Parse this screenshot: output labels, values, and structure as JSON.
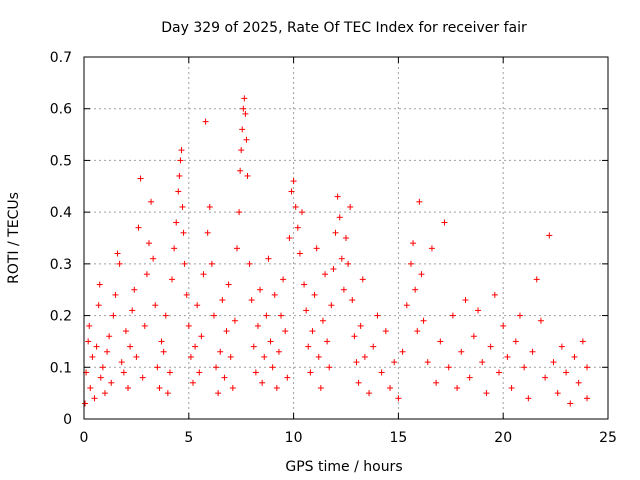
{
  "chart_data": {
    "type": "scatter",
    "title": "Day 329 of 2025, Rate Of TEC Index for receiver fair",
    "xlabel": "GPS time / hours",
    "ylabel": "ROTI / TECUs",
    "xlim": [
      0,
      25
    ],
    "ylim": [
      0,
      0.7
    ],
    "xticks": [
      "0",
      "5",
      "10",
      "15",
      "20",
      "25"
    ],
    "yticks": [
      "0",
      "0.1",
      "0.2",
      "0.3",
      "0.4",
      "0.5",
      "0.6",
      "0.7"
    ],
    "grid": true,
    "legend": "none",
    "marker": "+",
    "marker_color": "#ff0000",
    "series": [
      {
        "points": [
          [
            0.05,
            0.03
          ],
          [
            0.1,
            0.09
          ],
          [
            0.2,
            0.15
          ],
          [
            0.25,
            0.18
          ],
          [
            0.3,
            0.06
          ],
          [
            0.4,
            0.12
          ],
          [
            0.5,
            0.04
          ],
          [
            0.6,
            0.14
          ],
          [
            0.7,
            0.22
          ],
          [
            0.75,
            0.26
          ],
          [
            0.8,
            0.08
          ],
          [
            0.9,
            0.1
          ],
          [
            1.0,
            0.05
          ],
          [
            1.1,
            0.13
          ],
          [
            1.2,
            0.16
          ],
          [
            1.3,
            0.07
          ],
          [
            1.4,
            0.2
          ],
          [
            1.5,
            0.24
          ],
          [
            1.6,
            0.32
          ],
          [
            1.7,
            0.3
          ],
          [
            1.8,
            0.11
          ],
          [
            1.9,
            0.09
          ],
          [
            2.0,
            0.17
          ],
          [
            2.1,
            0.06
          ],
          [
            2.2,
            0.14
          ],
          [
            2.3,
            0.21
          ],
          [
            2.4,
            0.25
          ],
          [
            2.5,
            0.12
          ],
          [
            2.6,
            0.37
          ],
          [
            2.7,
            0.465
          ],
          [
            2.8,
            0.08
          ],
          [
            2.9,
            0.18
          ],
          [
            3.0,
            0.28
          ],
          [
            3.1,
            0.34
          ],
          [
            3.2,
            0.42
          ],
          [
            3.3,
            0.31
          ],
          [
            3.4,
            0.22
          ],
          [
            3.5,
            0.1
          ],
          [
            3.6,
            0.06
          ],
          [
            3.7,
            0.15
          ],
          [
            3.8,
            0.13
          ],
          [
            3.9,
            0.2
          ],
          [
            4.0,
            0.05
          ],
          [
            4.1,
            0.09
          ],
          [
            4.2,
            0.27
          ],
          [
            4.3,
            0.33
          ],
          [
            4.4,
            0.38
          ],
          [
            4.5,
            0.44
          ],
          [
            4.55,
            0.47
          ],
          [
            4.6,
            0.5
          ],
          [
            4.65,
            0.52
          ],
          [
            4.7,
            0.41
          ],
          [
            4.75,
            0.36
          ],
          [
            4.8,
            0.3
          ],
          [
            4.9,
            0.24
          ],
          [
            5.0,
            0.18
          ],
          [
            5.1,
            0.12
          ],
          [
            5.2,
            0.07
          ],
          [
            5.3,
            0.14
          ],
          [
            5.4,
            0.22
          ],
          [
            5.5,
            0.09
          ],
          [
            5.6,
            0.16
          ],
          [
            5.7,
            0.28
          ],
          [
            5.8,
            0.575
          ],
          [
            5.9,
            0.36
          ],
          [
            6.0,
            0.41
          ],
          [
            6.1,
            0.3
          ],
          [
            6.2,
            0.2
          ],
          [
            6.3,
            0.1
          ],
          [
            6.4,
            0.05
          ],
          [
            6.5,
            0.13
          ],
          [
            6.6,
            0.23
          ],
          [
            6.7,
            0.08
          ],
          [
            6.8,
            0.17
          ],
          [
            6.9,
            0.26
          ],
          [
            7.0,
            0.12
          ],
          [
            7.1,
            0.06
          ],
          [
            7.2,
            0.19
          ],
          [
            7.3,
            0.33
          ],
          [
            7.4,
            0.4
          ],
          [
            7.45,
            0.48
          ],
          [
            7.5,
            0.52
          ],
          [
            7.55,
            0.56
          ],
          [
            7.6,
            0.6
          ],
          [
            7.65,
            0.62
          ],
          [
            7.7,
            0.59
          ],
          [
            7.75,
            0.54
          ],
          [
            7.8,
            0.47
          ],
          [
            7.9,
            0.3
          ],
          [
            8.0,
            0.23
          ],
          [
            8.1,
            0.14
          ],
          [
            8.2,
            0.09
          ],
          [
            8.3,
            0.18
          ],
          [
            8.4,
            0.25
          ],
          [
            8.5,
            0.07
          ],
          [
            8.6,
            0.12
          ],
          [
            8.7,
            0.2
          ],
          [
            8.8,
            0.31
          ],
          [
            8.9,
            0.15
          ],
          [
            9.0,
            0.1
          ],
          [
            9.1,
            0.24
          ],
          [
            9.2,
            0.06
          ],
          [
            9.3,
            0.13
          ],
          [
            9.4,
            0.2
          ],
          [
            9.5,
            0.27
          ],
          [
            9.6,
            0.17
          ],
          [
            9.7,
            0.08
          ],
          [
            9.8,
            0.35
          ],
          [
            9.9,
            0.44
          ],
          [
            10.0,
            0.46
          ],
          [
            10.1,
            0.41
          ],
          [
            10.2,
            0.37
          ],
          [
            10.3,
            0.32
          ],
          [
            10.4,
            0.4
          ],
          [
            10.5,
            0.26
          ],
          [
            10.6,
            0.21
          ],
          [
            10.7,
            0.14
          ],
          [
            10.8,
            0.09
          ],
          [
            10.9,
            0.17
          ],
          [
            11.0,
            0.24
          ],
          [
            11.1,
            0.33
          ],
          [
            11.2,
            0.12
          ],
          [
            11.3,
            0.06
          ],
          [
            11.4,
            0.19
          ],
          [
            11.5,
            0.28
          ],
          [
            11.6,
            0.15
          ],
          [
            11.7,
            0.1
          ],
          [
            11.8,
            0.22
          ],
          [
            11.9,
            0.29
          ],
          [
            12.0,
            0.36
          ],
          [
            12.1,
            0.43
          ],
          [
            12.2,
            0.39
          ],
          [
            12.3,
            0.31
          ],
          [
            12.4,
            0.25
          ],
          [
            12.5,
            0.35
          ],
          [
            12.6,
            0.3
          ],
          [
            12.7,
            0.41
          ],
          [
            12.8,
            0.23
          ],
          [
            12.9,
            0.16
          ],
          [
            13.0,
            0.11
          ],
          [
            13.1,
            0.07
          ],
          [
            13.2,
            0.18
          ],
          [
            13.3,
            0.27
          ],
          [
            13.4,
            0.12
          ],
          [
            13.6,
            0.05
          ],
          [
            13.8,
            0.14
          ],
          [
            14.0,
            0.2
          ],
          [
            14.2,
            0.09
          ],
          [
            14.4,
            0.17
          ],
          [
            14.6,
            0.06
          ],
          [
            14.8,
            0.11
          ],
          [
            15.0,
            0.04
          ],
          [
            15.2,
            0.13
          ],
          [
            15.4,
            0.22
          ],
          [
            15.6,
            0.3
          ],
          [
            15.7,
            0.34
          ],
          [
            15.8,
            0.25
          ],
          [
            15.9,
            0.17
          ],
          [
            16.0,
            0.42
          ],
          [
            16.1,
            0.28
          ],
          [
            16.2,
            0.19
          ],
          [
            16.4,
            0.11
          ],
          [
            16.6,
            0.33
          ],
          [
            16.8,
            0.07
          ],
          [
            17.0,
            0.15
          ],
          [
            17.2,
            0.38
          ],
          [
            17.4,
            0.1
          ],
          [
            17.6,
            0.2
          ],
          [
            17.8,
            0.06
          ],
          [
            18.0,
            0.13
          ],
          [
            18.2,
            0.23
          ],
          [
            18.4,
            0.08
          ],
          [
            18.6,
            0.16
          ],
          [
            18.8,
            0.21
          ],
          [
            19.0,
            0.11
          ],
          [
            19.2,
            0.05
          ],
          [
            19.4,
            0.14
          ],
          [
            19.6,
            0.24
          ],
          [
            19.8,
            0.09
          ],
          [
            20.0,
            0.18
          ],
          [
            20.2,
            0.12
          ],
          [
            20.4,
            0.06
          ],
          [
            20.6,
            0.15
          ],
          [
            20.8,
            0.2
          ],
          [
            21.0,
            0.1
          ],
          [
            21.2,
            0.04
          ],
          [
            21.4,
            0.13
          ],
          [
            21.6,
            0.27
          ],
          [
            21.8,
            0.19
          ],
          [
            22.0,
            0.08
          ],
          [
            22.2,
            0.355
          ],
          [
            22.4,
            0.11
          ],
          [
            22.6,
            0.05
          ],
          [
            22.8,
            0.14
          ],
          [
            23.0,
            0.09
          ],
          [
            23.2,
            0.03
          ],
          [
            23.4,
            0.12
          ],
          [
            23.6,
            0.07
          ],
          [
            23.8,
            0.15
          ],
          [
            24.0,
            0.04
          ],
          [
            24.0,
            0.1
          ]
        ]
      }
    ]
  }
}
